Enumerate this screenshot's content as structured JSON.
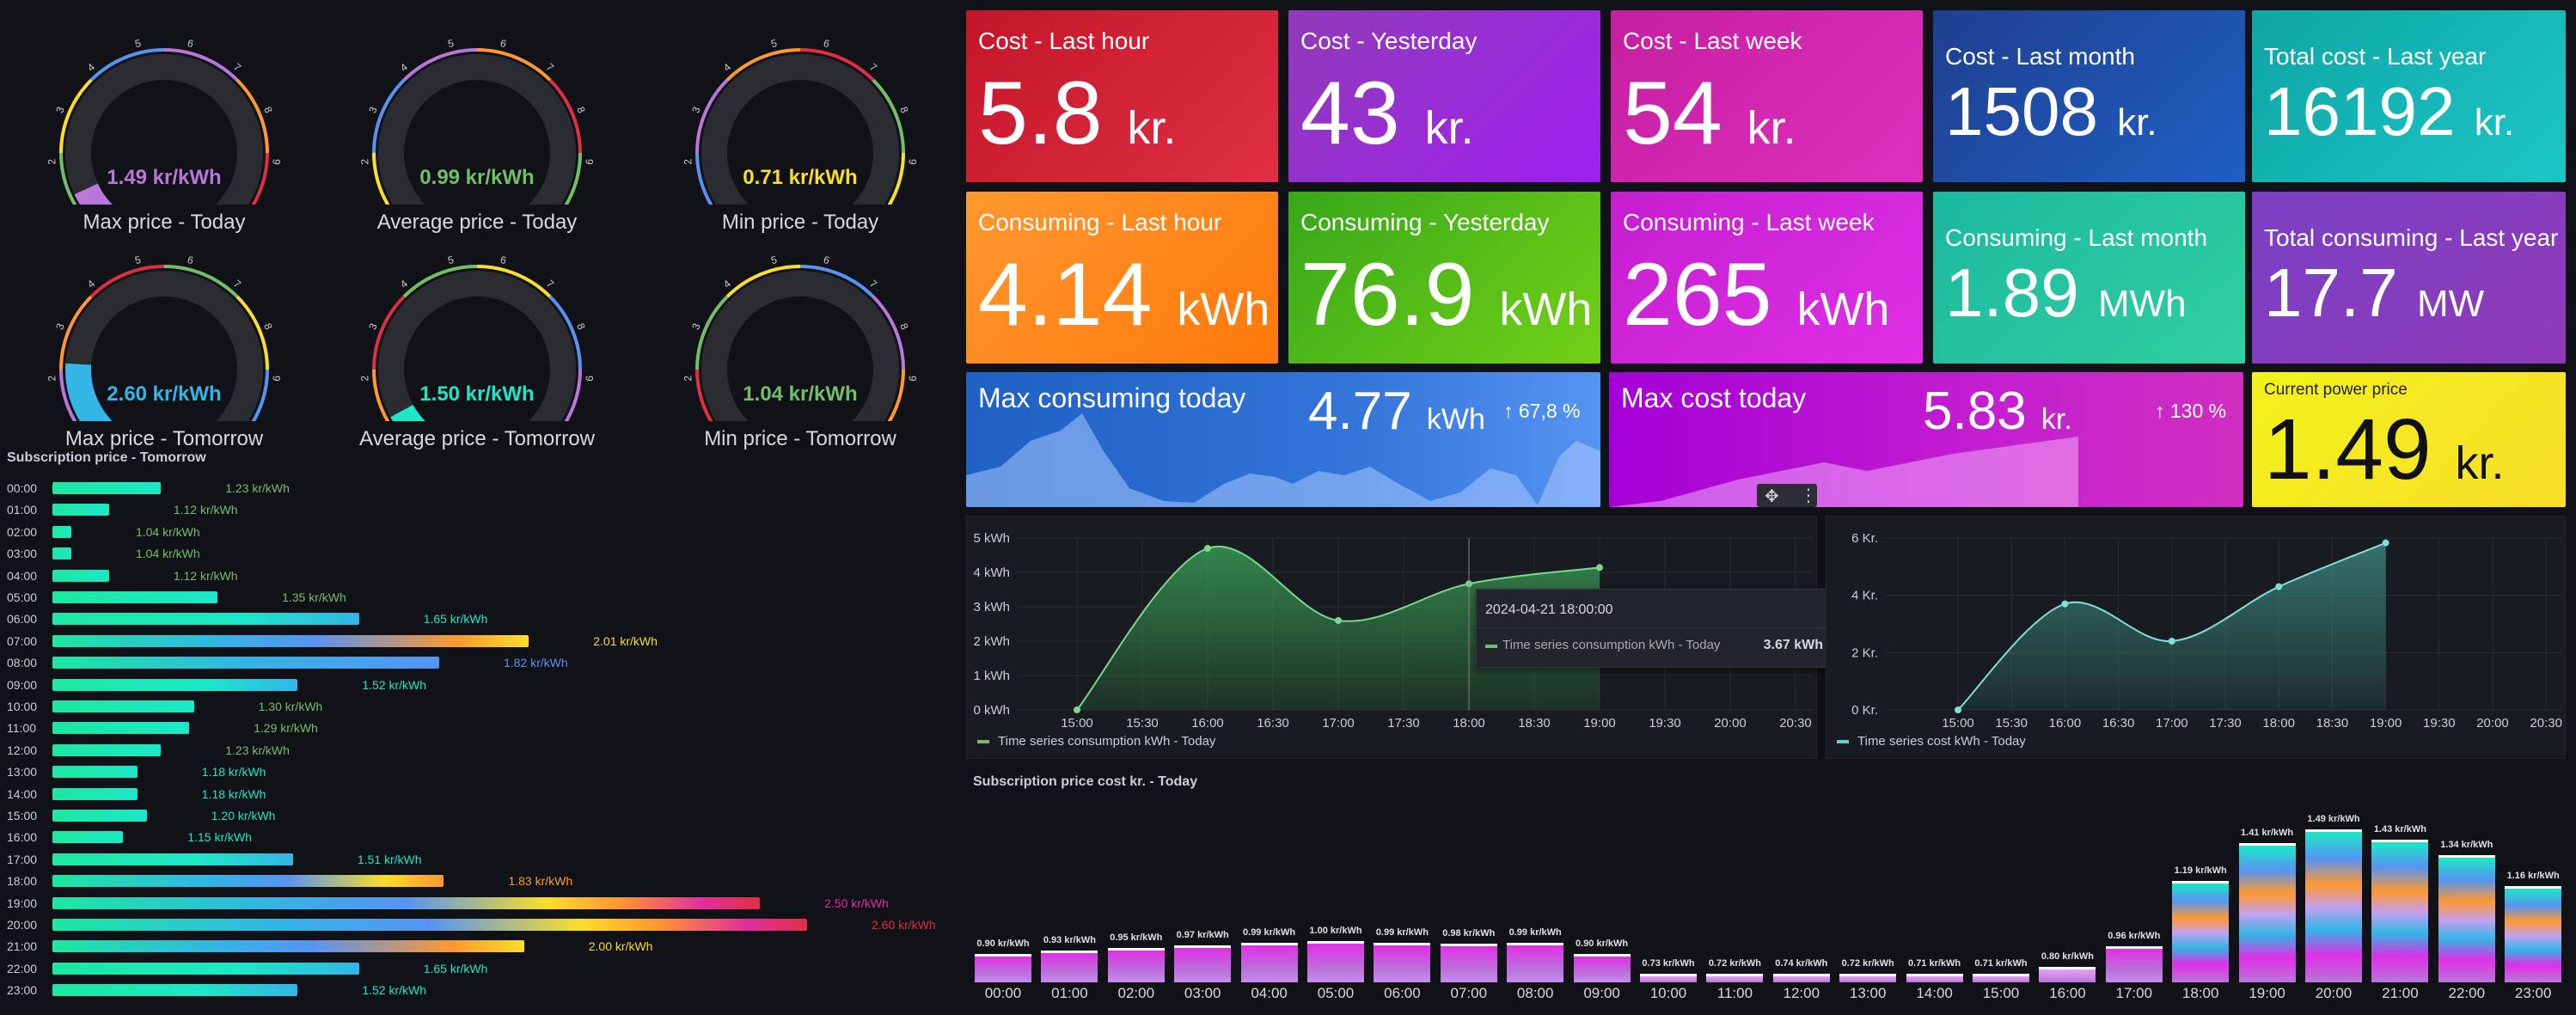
{
  "gauges": [
    {
      "title": "Max price - Today",
      "value": "1.49 kr/kWh",
      "color": "#b877d9",
      "fraction": 0.075
    },
    {
      "title": "Average price - Today",
      "value": "0.99 kr/kWh",
      "color": "#73bf69",
      "fraction": 0.0
    },
    {
      "title": "Min price - Today",
      "value": "0.71 kr/kWh",
      "color": "#fade2a",
      "fraction": 0.0
    },
    {
      "title": "Max price - Tomorrow",
      "value": "2.60 kr/kWh",
      "color": "#33b5e5",
      "fraction": 0.18
    },
    {
      "title": "Average price - Tomorrow",
      "value": "1.50 kr/kWh",
      "color": "#1ce8c8",
      "fraction": 0.06
    },
    {
      "title": "Min price - Tomorrow",
      "value": "1.04 kr/kWh",
      "color": "#73bf69",
      "fraction": 0.0
    }
  ],
  "gauge_ticks": [
    "1",
    "2",
    "3",
    "4",
    "5",
    "6",
    "7",
    "8",
    "9",
    "10"
  ],
  "subscription_tomorrow": {
    "title": "Subscription price - Tomorrow",
    "max": 2.6,
    "rows": [
      {
        "hour": "00:00",
        "value": 1.23,
        "label": "1.23 kr/kWh",
        "color": "#73bf69"
      },
      {
        "hour": "01:00",
        "value": 1.12,
        "label": "1.12 kr/kWh",
        "color": "#73bf69"
      },
      {
        "hour": "02:00",
        "value": 1.04,
        "label": "1.04 kr/kWh",
        "color": "#73bf69"
      },
      {
        "hour": "03:00",
        "value": 1.04,
        "label": "1.04 kr/kWh",
        "color": "#73bf69"
      },
      {
        "hour": "04:00",
        "value": 1.12,
        "label": "1.12 kr/kWh",
        "color": "#73bf69"
      },
      {
        "hour": "05:00",
        "value": 1.35,
        "label": "1.35 kr/kWh",
        "color": "#73bf69"
      },
      {
        "hour": "06:00",
        "value": 1.65,
        "label": "1.65 kr/kWh",
        "color": "#1ce8c8"
      },
      {
        "hour": "07:00",
        "value": 2.01,
        "label": "2.01 kr/kWh",
        "color": "#fade2a"
      },
      {
        "hour": "08:00",
        "value": 1.82,
        "label": "1.82 kr/kWh",
        "color": "#5794f2"
      },
      {
        "hour": "09:00",
        "value": 1.52,
        "label": "1.52 kr/kWh",
        "color": "#1ce8c8"
      },
      {
        "hour": "10:00",
        "value": 1.3,
        "label": "1.30 kr/kWh",
        "color": "#73bf69"
      },
      {
        "hour": "11:00",
        "value": 1.29,
        "label": "1.29 kr/kWh",
        "color": "#73bf69"
      },
      {
        "hour": "12:00",
        "value": 1.23,
        "label": "1.23 kr/kWh",
        "color": "#73bf69"
      },
      {
        "hour": "13:00",
        "value": 1.18,
        "label": "1.18 kr/kWh",
        "color": "#1ce8c8"
      },
      {
        "hour": "14:00",
        "value": 1.18,
        "label": "1.18 kr/kWh",
        "color": "#1ce8c8"
      },
      {
        "hour": "15:00",
        "value": 1.2,
        "label": "1.20 kr/kWh",
        "color": "#1ce8c8"
      },
      {
        "hour": "16:00",
        "value": 1.15,
        "label": "1.15 kr/kWh",
        "color": "#1ce8c8"
      },
      {
        "hour": "17:00",
        "value": 1.51,
        "label": "1.51 kr/kWh",
        "color": "#1ce8c8"
      },
      {
        "hour": "18:00",
        "value": 1.83,
        "label": "1.83 kr/kWh",
        "color": "#ff9830"
      },
      {
        "hour": "19:00",
        "value": 2.5,
        "label": "2.50 kr/kWh",
        "color": "#e02f9d"
      },
      {
        "hour": "20:00",
        "value": 2.6,
        "label": "2.60 kr/kWh",
        "color": "#e02f44"
      },
      {
        "hour": "21:00",
        "value": 2.0,
        "label": "2.00 kr/kWh",
        "color": "#fade2a"
      },
      {
        "hour": "22:00",
        "value": 1.65,
        "label": "1.65 kr/kWh",
        "color": "#1ce8c8"
      },
      {
        "hour": "23:00",
        "value": 1.52,
        "label": "1.52 kr/kWh",
        "color": "#1ce8c8"
      }
    ]
  },
  "stats_cost": [
    {
      "title": "Cost - Last hour",
      "value": "5.8",
      "unit": "kr."
    },
    {
      "title": "Cost - Yesterday",
      "value": "43",
      "unit": "kr."
    },
    {
      "title": "Cost - Last week",
      "value": "54",
      "unit": "kr."
    },
    {
      "title": "Cost - Last month",
      "value": "1508",
      "unit": "kr."
    },
    {
      "title": "Total cost - Last year",
      "value": "16192",
      "unit": "kr."
    }
  ],
  "stats_consuming": [
    {
      "title": "Consuming - Last hour",
      "value": "4.14",
      "unit": "kWh"
    },
    {
      "title": "Consuming - Yesterday",
      "value": "76.9",
      "unit": "kWh"
    },
    {
      "title": "Consuming - Last week",
      "value": "265",
      "unit": "kWh"
    },
    {
      "title": "Consuming - Last month",
      "value": "1.89",
      "unit": "MWh"
    },
    {
      "title": "Total consuming - Last year",
      "value": "17.7",
      "unit": "MW"
    }
  ],
  "max_consuming": {
    "title": "Max consuming today",
    "value": "4.77",
    "unit": "kWh",
    "change": "↑ 67,8 %"
  },
  "max_cost": {
    "title": "Max cost today",
    "value": "5.83",
    "unit": "kr.",
    "change": "↑ 130 %"
  },
  "current_price": {
    "title": "Current power price",
    "value": "1.49",
    "unit": "kr."
  },
  "panel_icons": [
    "move-icon",
    "menu-icon"
  ],
  "chart_data": [
    {
      "type": "area",
      "title": "Time series consumption kWh - Today",
      "x": [
        "15:00",
        "16:00",
        "17:00",
        "18:00",
        "19:00"
      ],
      "series": [
        {
          "name": "Time series consumption kWh - Today",
          "values": [
            0,
            4.7,
            2.6,
            3.67,
            4.14
          ]
        }
      ],
      "xticks": [
        "15:00",
        "15:30",
        "16:00",
        "16:30",
        "17:00",
        "17:30",
        "18:00",
        "18:30",
        "19:00",
        "19:30",
        "20:00",
        "20:30"
      ],
      "yticks": [
        "0 kWh",
        "1 kWh",
        "2 kWh",
        "3 kWh",
        "4 kWh",
        "5 kWh"
      ],
      "ylim": [
        0,
        5
      ],
      "tooltip": {
        "time": "2024-04-21 18:00:00",
        "label": "Time series consumption kWh -  Today",
        "value": "3.67 kWh"
      }
    },
    {
      "type": "area",
      "title": "Time series cost kWh - Today",
      "x": [
        "15:00",
        "16:00",
        "17:00",
        "18:00",
        "19:00"
      ],
      "series": [
        {
          "name": "Time series cost kWh - Today",
          "values": [
            0,
            3.7,
            2.4,
            4.3,
            5.83
          ]
        }
      ],
      "xticks": [
        "15:00",
        "15:30",
        "16:00",
        "16:30",
        "17:00",
        "17:30",
        "18:00",
        "18:30",
        "19:00",
        "19:30",
        "20:00",
        "20:30"
      ],
      "yticks": [
        "0 Kr.",
        "2 Kr.",
        "4 Kr.",
        "6 Kr."
      ],
      "ylim": [
        0,
        6
      ]
    },
    {
      "type": "bar",
      "title": "Subscription price cost kr. - Today",
      "categories": [
        "00:00",
        "01:00",
        "02:00",
        "03:00",
        "04:00",
        "05:00",
        "06:00",
        "07:00",
        "08:00",
        "09:00",
        "10:00",
        "11:00",
        "12:00",
        "13:00",
        "14:00",
        "15:00",
        "16:00",
        "17:00",
        "18:00",
        "19:00",
        "20:00",
        "21:00",
        "22:00",
        "23:00"
      ],
      "values": [
        0.9,
        0.93,
        0.95,
        0.97,
        0.99,
        1.0,
        0.99,
        0.98,
        0.99,
        0.9,
        0.73,
        0.72,
        0.74,
        0.72,
        0.71,
        0.71,
        0.8,
        0.96,
        1.19,
        1.41,
        1.49,
        1.43,
        1.34,
        1.16
      ],
      "labels": [
        "0.90 kr/kWh",
        "0.93 kr/kWh",
        "0.95 kr/kWh",
        "0.97 kr/kWh",
        "0.99 kr/kWh",
        "1.00 kr/kWh",
        "0.99 kr/kWh",
        "0.98 kr/kWh",
        "0.99 kr/kWh",
        "0.90 kr/kWh",
        "0.73 kr/kWh",
        "0.72 kr/kWh",
        "0.74 kr/kWh",
        "0.72 kr/kWh",
        "0.71 kr/kWh",
        "0.71 kr/kWh",
        "0.80 kr/kWh",
        "0.96 kr/kWh",
        "1.19 kr/kWh",
        "1.41 kr/kWh",
        "1.49 kr/kWh",
        "1.43 kr/kWh",
        "1.34 kr/kWh",
        "1.16 kr/kWh"
      ]
    }
  ]
}
